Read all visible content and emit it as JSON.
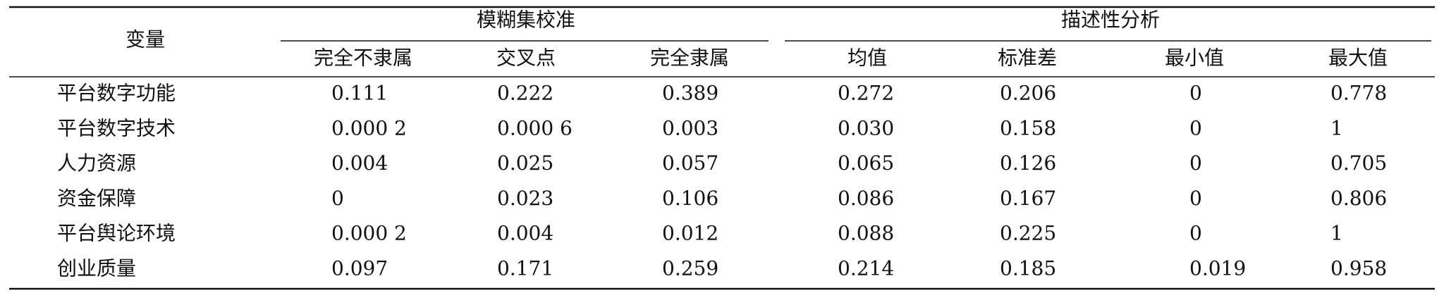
{
  "header": {
    "stub": "变量",
    "groups": [
      "模糊集校准",
      "描述性分析"
    ],
    "columns": [
      "完全不隶属",
      "交叉点",
      "完全隶属",
      "均值",
      "标准差",
      "最小值",
      "最大值"
    ]
  },
  "rows": [
    {
      "label": "平台数字功能",
      "values": [
        "0.111",
        "0.222",
        "0.389",
        "0.272",
        "0.206",
        "0",
        "0.778"
      ]
    },
    {
      "label": "平台数字技术",
      "values": [
        "0.000 2",
        "0.000 6",
        "0.003",
        "0.030",
        "0.158",
        "0",
        "1"
      ]
    },
    {
      "label": "人力资源",
      "values": [
        "0.004",
        "0.025",
        "0.057",
        "0.065",
        "0.126",
        "0",
        "0.705"
      ]
    },
    {
      "label": "资金保障",
      "values": [
        "0",
        "0.023",
        "0.106",
        "0.086",
        "0.167",
        "0",
        "0.806"
      ]
    },
    {
      "label": "平台舆论环境",
      "values": [
        "0.000 2",
        "0.004",
        "0.012",
        "0.088",
        "0.225",
        "0",
        "1"
      ]
    },
    {
      "label": "创业质量",
      "values": [
        "0.097",
        "0.171",
        "0.259",
        "0.214",
        "0.185",
        "0.019",
        "0.958"
      ]
    }
  ]
}
